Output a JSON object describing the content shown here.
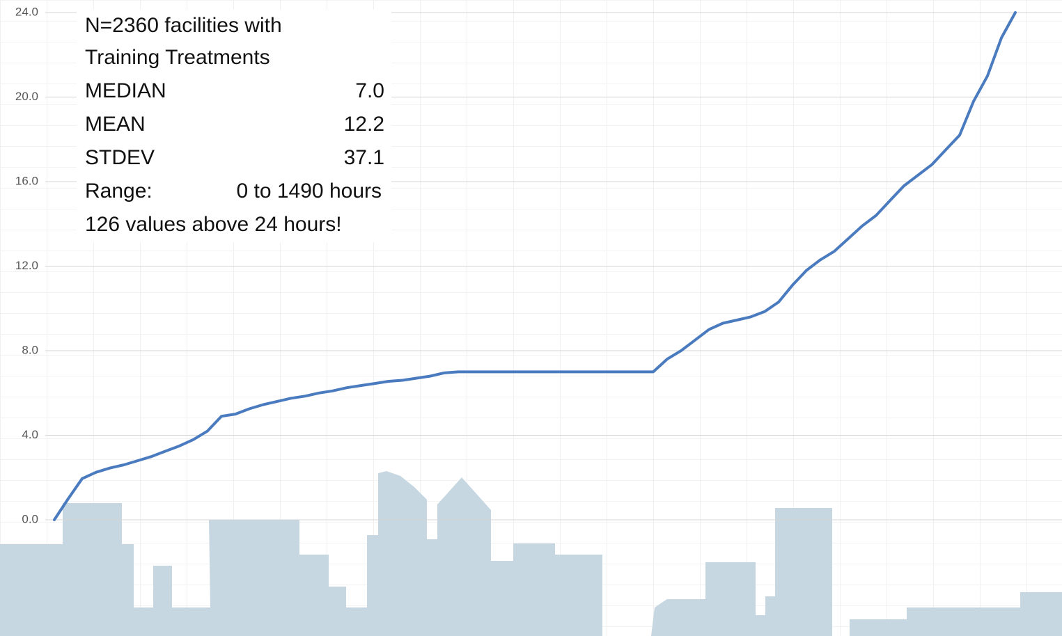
{
  "chart_data": {
    "type": "line",
    "categories": [
      null,
      null,
      null,
      null,
      null,
      null,
      null,
      null,
      null,
      null,
      null,
      null,
      null,
      null,
      null,
      null,
      null,
      null,
      null,
      null,
      null,
      null,
      null,
      null,
      null,
      null,
      null,
      null,
      null,
      null,
      null,
      null,
      null,
      null,
      null,
      null,
      null,
      null,
      null,
      null,
      null,
      null,
      null,
      null,
      null,
      null,
      null,
      null,
      null,
      null,
      null,
      null,
      null,
      null,
      null,
      null,
      null,
      null,
      null,
      null,
      null,
      null,
      null,
      null,
      null,
      null,
      null,
      null,
      null,
      null
    ],
    "series": [
      {
        "color": "#4a7bbf",
        "values": [
          0,
          1.0,
          1.95,
          2.25,
          2.45,
          2.6,
          2.8,
          3.0,
          3.25,
          3.5,
          3.8,
          4.2,
          4.9,
          5.0,
          5.25,
          5.45,
          5.6,
          5.75,
          5.85,
          6.0,
          6.1,
          6.25,
          6.35,
          6.45,
          6.55,
          6.6,
          6.7,
          6.8,
          6.95,
          7.0,
          7.0,
          7.0,
          7.0,
          7.0,
          7.0,
          7.0,
          7.0,
          7.0,
          7.0,
          7.0,
          7.0,
          7.0,
          7.0,
          7.0,
          7.6,
          8.0,
          8.5,
          9.0,
          9.3,
          9.45,
          9.6,
          9.85,
          10.3,
          11.1,
          11.8,
          12.3,
          12.7,
          13.3,
          13.9,
          14.4,
          15.1,
          15.8,
          16.3,
          16.8,
          17.5,
          18.2,
          19.8,
          21.0,
          22.8,
          24.0
        ]
      }
    ],
    "ylim": [
      0,
      24
    ],
    "yticks": [
      {
        "value": 0,
        "label": "0.0"
      },
      {
        "value": 4,
        "label": "4.0"
      },
      {
        "value": 8,
        "label": "8.0"
      },
      {
        "value": 12,
        "label": "12.0"
      },
      {
        "value": 16,
        "label": "16.0"
      },
      {
        "value": 20,
        "label": "20.0"
      },
      {
        "value": 24,
        "label": "24.0"
      }
    ],
    "grid": true,
    "annotations": {
      "heading": [
        "N=2360 facilities with",
        "Training Treatments"
      ],
      "stats": [
        {
          "label": "MEDIAN",
          "value": "7.0"
        },
        {
          "label": "MEAN",
          "value": "12.2"
        },
        {
          "label": "STDEV",
          "value": "37.1"
        }
      ],
      "range_label": "Range:",
      "range_value": "0 to 1490 hours",
      "footer": "126 values above 24 hours!"
    }
  }
}
